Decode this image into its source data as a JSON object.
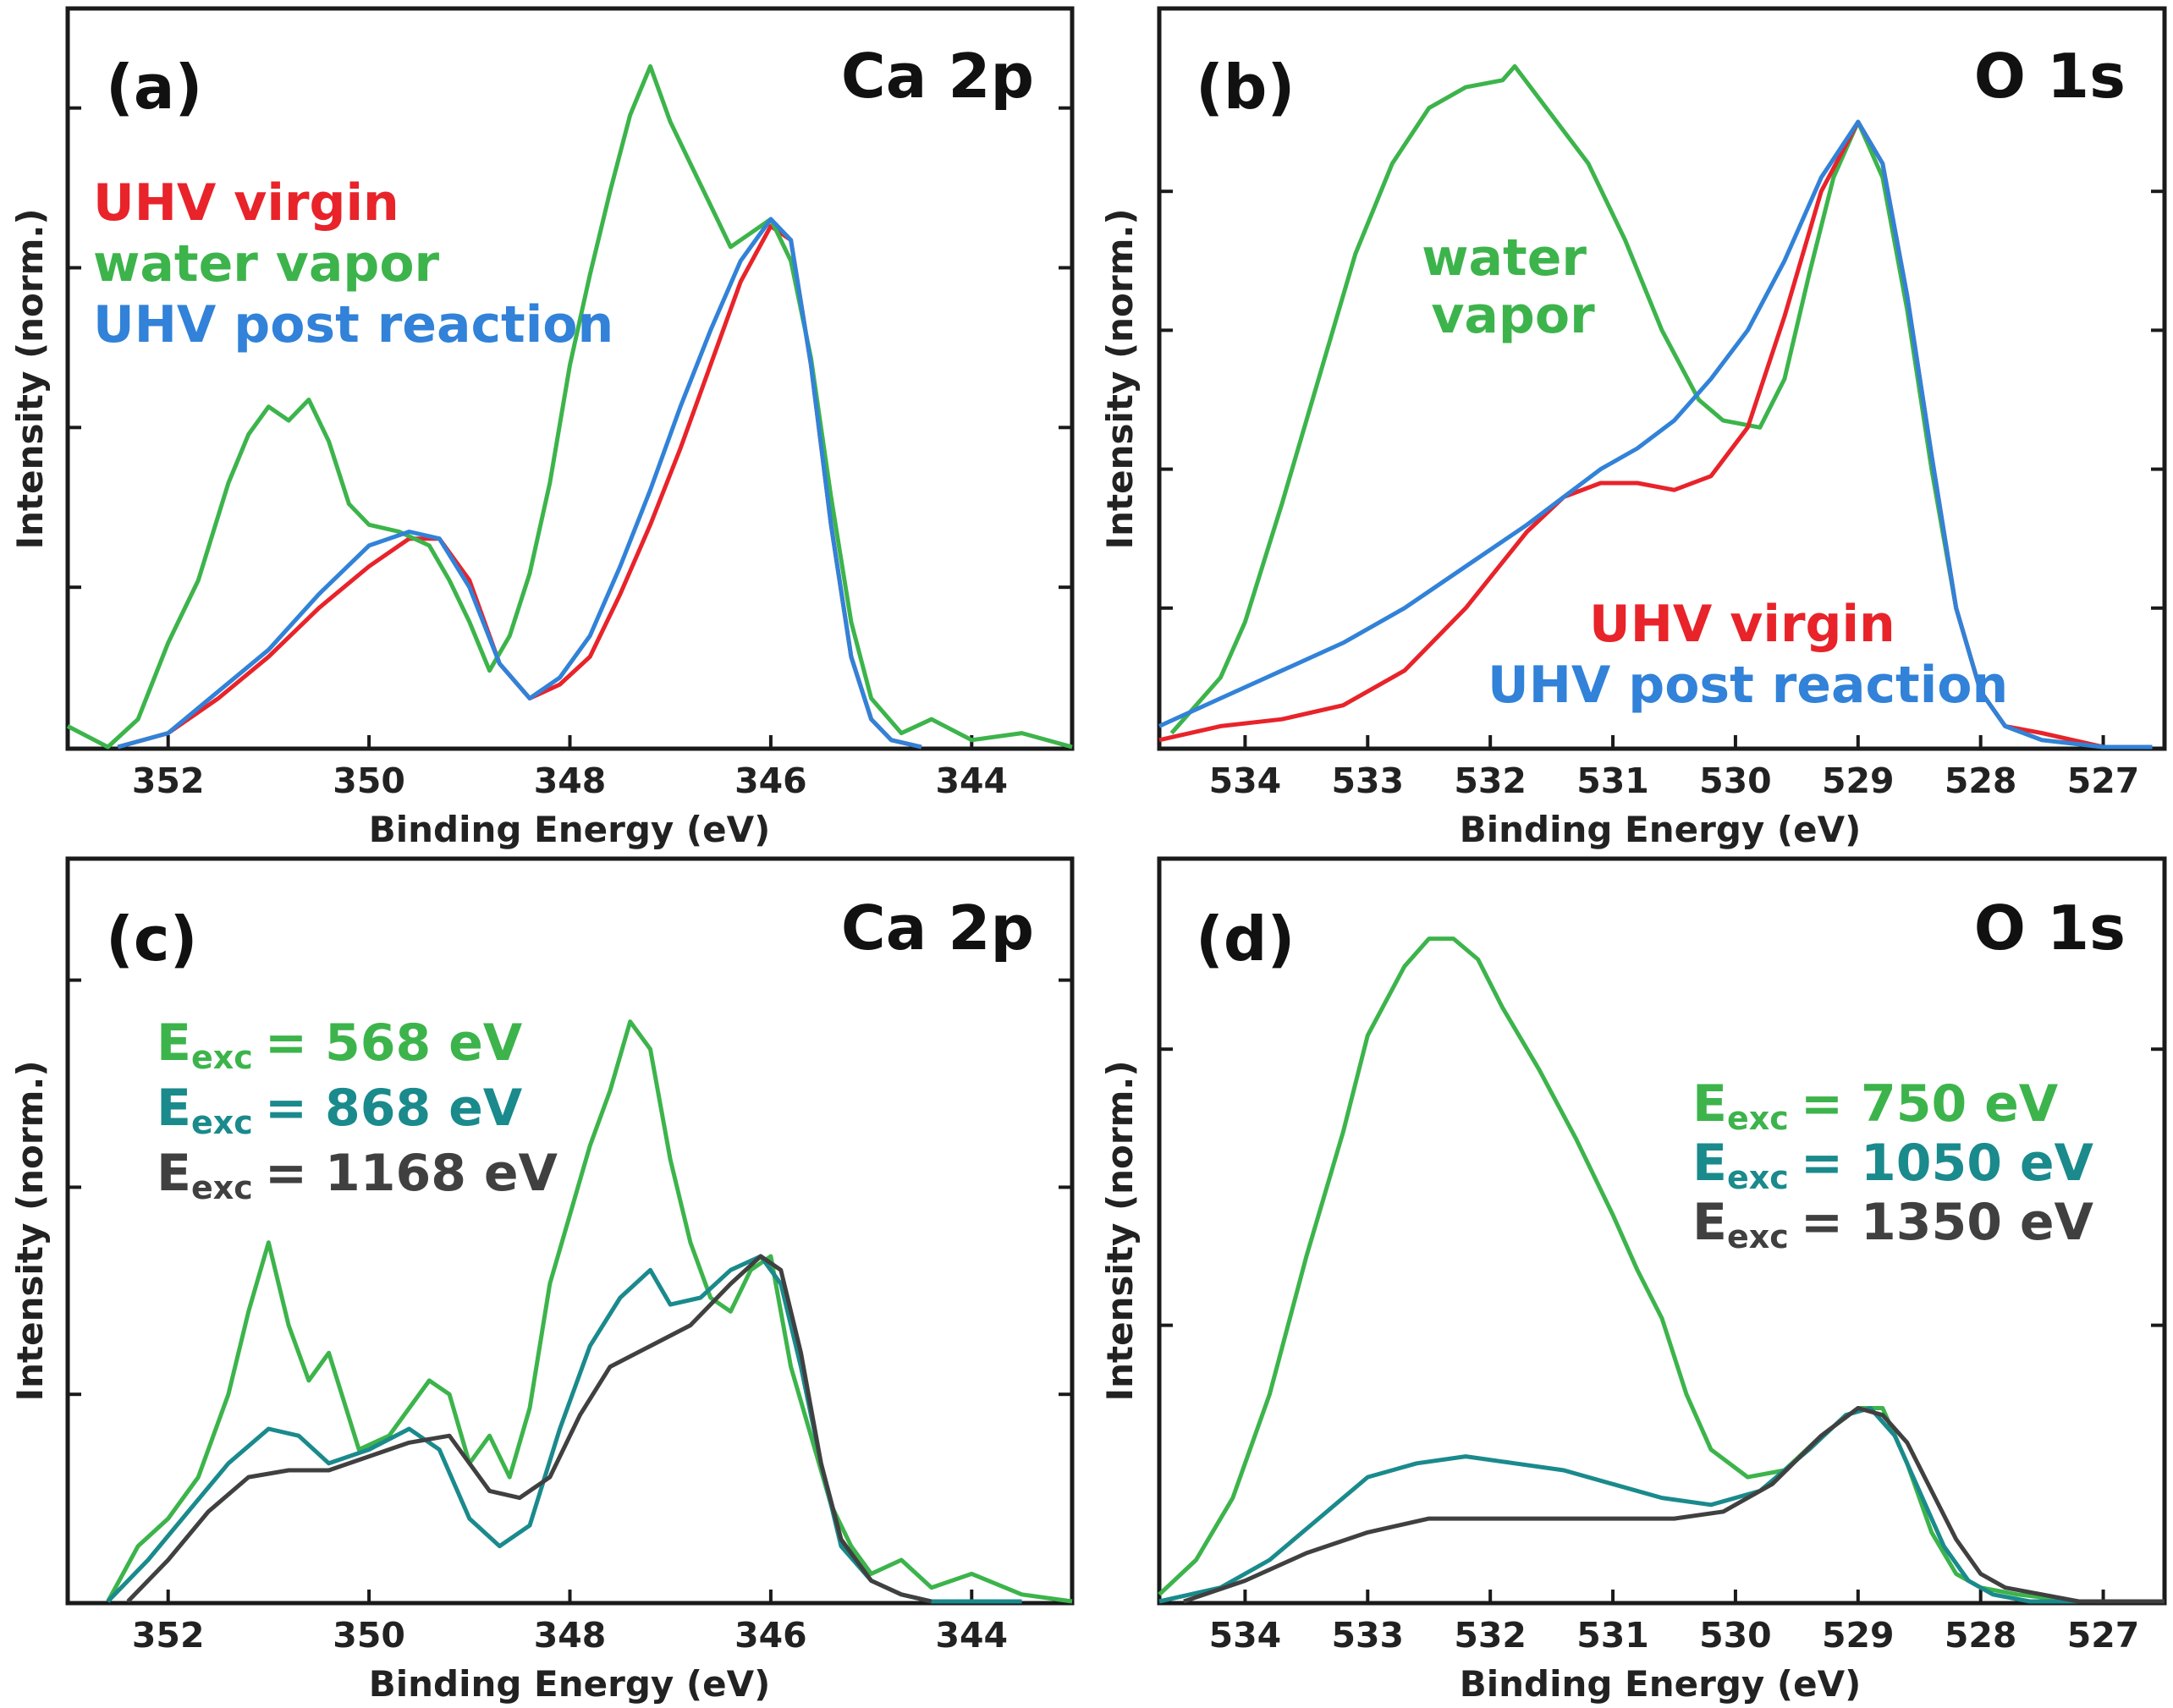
{
  "chart_data": [
    {
      "type": "line",
      "panel": "(a)",
      "title": "Ca 2p",
      "xlabel": "Binding Energy (eV)",
      "ylabel": "Intensity (norm.)",
      "xlim": [
        353,
        343
      ],
      "ylim": [
        0,
        1
      ],
      "x_ticks": [
        352,
        350,
        348,
        346,
        344
      ],
      "legend": [
        "UHV virgin",
        "water vapor",
        "UHV post reaction"
      ],
      "legend_colors": [
        "#e8232a",
        "#3cb44b",
        "#3182d8"
      ],
      "series": [
        {
          "name": "UHV virgin",
          "color": "#e8232a",
          "x": [
            352.5,
            352.0,
            351.5,
            351.0,
            350.5,
            350.0,
            349.6,
            349.3,
            349.0,
            348.7,
            348.4,
            348.1,
            347.8,
            347.5,
            347.2,
            346.9,
            346.6,
            346.3,
            346.0,
            345.8,
            345.6,
            345.4,
            345.2,
            345.0,
            344.8,
            344.5
          ],
          "y": [
            0.0,
            0.02,
            0.07,
            0.13,
            0.2,
            0.26,
            0.3,
            0.3,
            0.24,
            0.12,
            0.07,
            0.09,
            0.13,
            0.22,
            0.32,
            0.43,
            0.55,
            0.67,
            0.75,
            0.73,
            0.55,
            0.32,
            0.13,
            0.04,
            0.01,
            0.0
          ]
        },
        {
          "name": "water vapor",
          "color": "#3cb44b",
          "x": [
            353.0,
            352.6,
            352.3,
            352.0,
            351.7,
            351.4,
            351.2,
            351.0,
            350.8,
            350.6,
            350.4,
            350.2,
            350.0,
            349.7,
            349.4,
            349.2,
            349.0,
            348.8,
            348.6,
            348.4,
            348.2,
            348.0,
            347.8,
            347.6,
            347.4,
            347.2,
            347.0,
            346.8,
            346.6,
            346.4,
            346.2,
            346.0,
            345.8,
            345.6,
            345.4,
            345.2,
            345.0,
            344.7,
            344.4,
            344.0,
            343.5,
            343.0
          ],
          "y": [
            0.03,
            0.0,
            0.04,
            0.15,
            0.24,
            0.38,
            0.45,
            0.49,
            0.47,
            0.5,
            0.44,
            0.35,
            0.32,
            0.31,
            0.29,
            0.24,
            0.18,
            0.11,
            0.16,
            0.25,
            0.38,
            0.55,
            0.68,
            0.8,
            0.91,
            0.98,
            0.9,
            0.84,
            0.78,
            0.72,
            0.74,
            0.76,
            0.7,
            0.56,
            0.36,
            0.18,
            0.07,
            0.02,
            0.04,
            0.01,
            0.02,
            0.0
          ]
        },
        {
          "name": "UHV post reaction",
          "color": "#3182d8",
          "x": [
            352.5,
            352.0,
            351.5,
            351.0,
            350.5,
            350.0,
            349.6,
            349.3,
            349.0,
            348.7,
            348.4,
            348.1,
            347.8,
            347.5,
            347.2,
            346.9,
            346.6,
            346.3,
            346.0,
            345.8,
            345.6,
            345.4,
            345.2,
            345.0,
            344.8,
            344.5
          ],
          "y": [
            0.0,
            0.02,
            0.08,
            0.14,
            0.22,
            0.29,
            0.31,
            0.3,
            0.23,
            0.12,
            0.07,
            0.1,
            0.16,
            0.26,
            0.37,
            0.49,
            0.6,
            0.7,
            0.76,
            0.73,
            0.55,
            0.32,
            0.13,
            0.04,
            0.01,
            0.0
          ]
        }
      ]
    },
    {
      "type": "line",
      "panel": "(b)",
      "title": "O 1s",
      "xlabel": "Binding Energy (eV)",
      "ylabel": "Intensity (norm.)",
      "xlim": [
        534.7,
        526.5
      ],
      "ylim": [
        0,
        1
      ],
      "x_ticks": [
        534,
        533,
        532,
        531,
        530,
        529,
        528,
        527
      ],
      "legend": [
        "water vapor",
        "UHV virgin",
        "UHV post reaction"
      ],
      "legend_colors": [
        "#3cb44b",
        "#e8232a",
        "#3182d8"
      ],
      "series": [
        {
          "name": "water vapor",
          "color": "#3cb44b",
          "x": [
            534.6,
            534.2,
            534.0,
            533.7,
            533.4,
            533.1,
            532.8,
            532.5,
            532.2,
            531.9,
            531.8,
            531.5,
            531.2,
            530.9,
            530.6,
            530.3,
            530.1,
            529.8,
            529.6,
            529.4,
            529.2,
            529.0,
            528.8,
            528.6,
            528.4,
            528.2,
            528.0,
            527.8,
            527.5,
            527.0,
            526.6
          ],
          "y": [
            0.02,
            0.1,
            0.18,
            0.35,
            0.53,
            0.71,
            0.84,
            0.92,
            0.95,
            0.96,
            0.98,
            0.91,
            0.84,
            0.73,
            0.6,
            0.5,
            0.47,
            0.46,
            0.53,
            0.68,
            0.82,
            0.9,
            0.82,
            0.63,
            0.4,
            0.2,
            0.08,
            0.03,
            0.01,
            0.0,
            0.0
          ]
        },
        {
          "name": "UHV virgin",
          "color": "#e8232a",
          "x": [
            534.7,
            534.2,
            533.7,
            533.2,
            532.7,
            532.2,
            531.7,
            531.4,
            531.1,
            530.8,
            530.5,
            530.2,
            529.9,
            529.6,
            529.3,
            529.0,
            528.8,
            528.6,
            528.4,
            528.2,
            528.0,
            527.8,
            527.5,
            527.0,
            526.6
          ],
          "y": [
            0.01,
            0.03,
            0.04,
            0.06,
            0.11,
            0.2,
            0.31,
            0.36,
            0.38,
            0.38,
            0.37,
            0.39,
            0.46,
            0.62,
            0.8,
            0.9,
            0.84,
            0.65,
            0.42,
            0.2,
            0.08,
            0.03,
            0.02,
            0.0,
            0.0
          ]
        },
        {
          "name": "UHV post reaction",
          "color": "#3182d8",
          "x": [
            534.7,
            534.2,
            533.7,
            533.2,
            532.7,
            532.2,
            531.7,
            531.4,
            531.1,
            530.8,
            530.5,
            530.2,
            529.9,
            529.6,
            529.3,
            529.0,
            528.8,
            528.6,
            528.4,
            528.2,
            528.0,
            527.8,
            527.5,
            527.0,
            526.6
          ],
          "y": [
            0.03,
            0.07,
            0.11,
            0.15,
            0.2,
            0.26,
            0.32,
            0.36,
            0.4,
            0.43,
            0.47,
            0.53,
            0.6,
            0.7,
            0.82,
            0.9,
            0.84,
            0.65,
            0.42,
            0.2,
            0.08,
            0.03,
            0.01,
            0.0,
            0.0
          ]
        }
      ]
    },
    {
      "type": "line",
      "panel": "(c)",
      "title": "Ca 2p",
      "xlabel": "Binding Energy (eV)",
      "ylabel": "Intensity (norm.)",
      "xlim": [
        353,
        343
      ],
      "ylim": [
        0,
        1
      ],
      "x_ticks": [
        352,
        350,
        348,
        346,
        344
      ],
      "legend": [
        "= 568 eV",
        "= 868 eV",
        "= 1168 eV"
      ],
      "legend_colors": [
        "#3cb44b",
        "#1a8a8c",
        "#404040"
      ],
      "series": [
        {
          "name": "E_exc = 568 eV",
          "color": "#3cb44b",
          "x": [
            352.6,
            352.3,
            352.0,
            351.7,
            351.4,
            351.2,
            351.0,
            350.8,
            350.6,
            350.4,
            350.1,
            349.8,
            349.6,
            349.4,
            349.2,
            349.0,
            348.8,
            348.6,
            348.4,
            348.2,
            348.0,
            347.8,
            347.6,
            347.4,
            347.2,
            347.0,
            346.8,
            346.6,
            346.4,
            346.2,
            346.0,
            345.8,
            345.6,
            345.4,
            345.2,
            345.0,
            344.7,
            344.4,
            344.0,
            343.5,
            343.0
          ],
          "y": [
            0.0,
            0.08,
            0.12,
            0.18,
            0.3,
            0.42,
            0.52,
            0.4,
            0.32,
            0.36,
            0.22,
            0.24,
            0.28,
            0.32,
            0.3,
            0.2,
            0.24,
            0.18,
            0.28,
            0.46,
            0.56,
            0.66,
            0.74,
            0.84,
            0.8,
            0.64,
            0.52,
            0.44,
            0.42,
            0.48,
            0.5,
            0.34,
            0.24,
            0.14,
            0.08,
            0.04,
            0.06,
            0.02,
            0.04,
            0.01,
            0.0
          ]
        },
        {
          "name": "E_exc = 868 eV",
          "color": "#1a8a8c",
          "x": [
            352.6,
            352.2,
            351.8,
            351.4,
            351.0,
            350.7,
            350.4,
            350.0,
            349.6,
            349.3,
            349.0,
            348.7,
            348.4,
            348.1,
            347.8,
            347.5,
            347.2,
            347.0,
            346.7,
            346.4,
            346.1,
            345.9,
            345.7,
            345.5,
            345.3,
            345.0,
            344.7,
            344.4,
            344.0,
            343.5
          ],
          "y": [
            0.0,
            0.06,
            0.13,
            0.2,
            0.25,
            0.24,
            0.2,
            0.22,
            0.25,
            0.22,
            0.12,
            0.08,
            0.11,
            0.25,
            0.37,
            0.44,
            0.48,
            0.43,
            0.44,
            0.48,
            0.5,
            0.46,
            0.34,
            0.2,
            0.08,
            0.03,
            0.01,
            0.0,
            0.0,
            0.0
          ]
        },
        {
          "name": "E_exc = 1168 eV",
          "color": "#404040",
          "x": [
            352.4,
            352.0,
            351.6,
            351.2,
            350.8,
            350.4,
            350.0,
            349.6,
            349.2,
            348.8,
            348.5,
            348.2,
            347.9,
            347.6,
            347.2,
            346.8,
            346.4,
            346.1,
            345.9,
            345.7,
            345.5,
            345.3,
            345.0,
            344.7,
            344.4
          ],
          "y": [
            0.0,
            0.06,
            0.13,
            0.18,
            0.19,
            0.19,
            0.21,
            0.23,
            0.24,
            0.16,
            0.15,
            0.18,
            0.27,
            0.34,
            0.37,
            0.4,
            0.46,
            0.5,
            0.48,
            0.36,
            0.2,
            0.09,
            0.03,
            0.01,
            0.0
          ]
        }
      ]
    },
    {
      "type": "line",
      "panel": "(d)",
      "title": "O 1s",
      "xlabel": "Binding Energy (eV)",
      "ylabel": "Intensity (norm.)",
      "xlim": [
        534.7,
        526.5
      ],
      "ylim": [
        0,
        1
      ],
      "x_ticks": [
        534,
        533,
        532,
        531,
        530,
        529,
        528,
        527
      ],
      "legend": [
        "= 750 eV",
        "= 1050 eV",
        "= 1350 eV"
      ],
      "legend_colors": [
        "#3cb44b",
        "#1a8a8c",
        "#404040"
      ],
      "series": [
        {
          "name": "E_exc = 750 eV",
          "color": "#3cb44b",
          "x": [
            534.7,
            534.4,
            534.1,
            533.8,
            533.5,
            533.2,
            533.0,
            532.7,
            532.5,
            532.3,
            532.1,
            531.9,
            531.6,
            531.3,
            531.0,
            530.8,
            530.6,
            530.4,
            530.2,
            529.9,
            529.6,
            529.3,
            529.0,
            528.8,
            528.6,
            528.4,
            528.2,
            528.0,
            527.7,
            527.2,
            526.6
          ],
          "y": [
            0.01,
            0.06,
            0.15,
            0.3,
            0.5,
            0.68,
            0.82,
            0.92,
            0.96,
            0.96,
            0.93,
            0.86,
            0.77,
            0.67,
            0.56,
            0.48,
            0.41,
            0.3,
            0.22,
            0.18,
            0.19,
            0.24,
            0.28,
            0.28,
            0.2,
            0.1,
            0.04,
            0.02,
            0.01,
            0.0,
            0.0
          ]
        },
        {
          "name": "E_exc = 1050 eV",
          "color": "#1a8a8c",
          "x": [
            534.7,
            534.2,
            533.8,
            533.4,
            533.0,
            532.6,
            532.2,
            531.8,
            531.4,
            531.0,
            530.6,
            530.2,
            529.8,
            529.4,
            529.1,
            528.9,
            528.7,
            528.5,
            528.3,
            528.1,
            527.9,
            527.6,
            527.2,
            526.6
          ],
          "y": [
            0.0,
            0.02,
            0.06,
            0.12,
            0.18,
            0.2,
            0.21,
            0.2,
            0.19,
            0.17,
            0.15,
            0.14,
            0.16,
            0.22,
            0.27,
            0.28,
            0.24,
            0.16,
            0.08,
            0.03,
            0.01,
            0.0,
            0.0,
            0.0
          ]
        },
        {
          "name": "E_exc = 1350 eV",
          "color": "#404040",
          "x": [
            534.5,
            534.0,
            533.5,
            533.0,
            532.5,
            532.0,
            531.5,
            531.0,
            530.5,
            530.1,
            529.7,
            529.3,
            529.0,
            528.8,
            528.6,
            528.4,
            528.2,
            528.0,
            527.8,
            527.5,
            527.2,
            526.8,
            526.5
          ],
          "y": [
            0.0,
            0.03,
            0.07,
            0.1,
            0.12,
            0.12,
            0.12,
            0.12,
            0.12,
            0.13,
            0.17,
            0.24,
            0.28,
            0.27,
            0.23,
            0.16,
            0.09,
            0.04,
            0.02,
            0.01,
            0.0,
            0.0,
            0.0
          ]
        }
      ]
    }
  ]
}
